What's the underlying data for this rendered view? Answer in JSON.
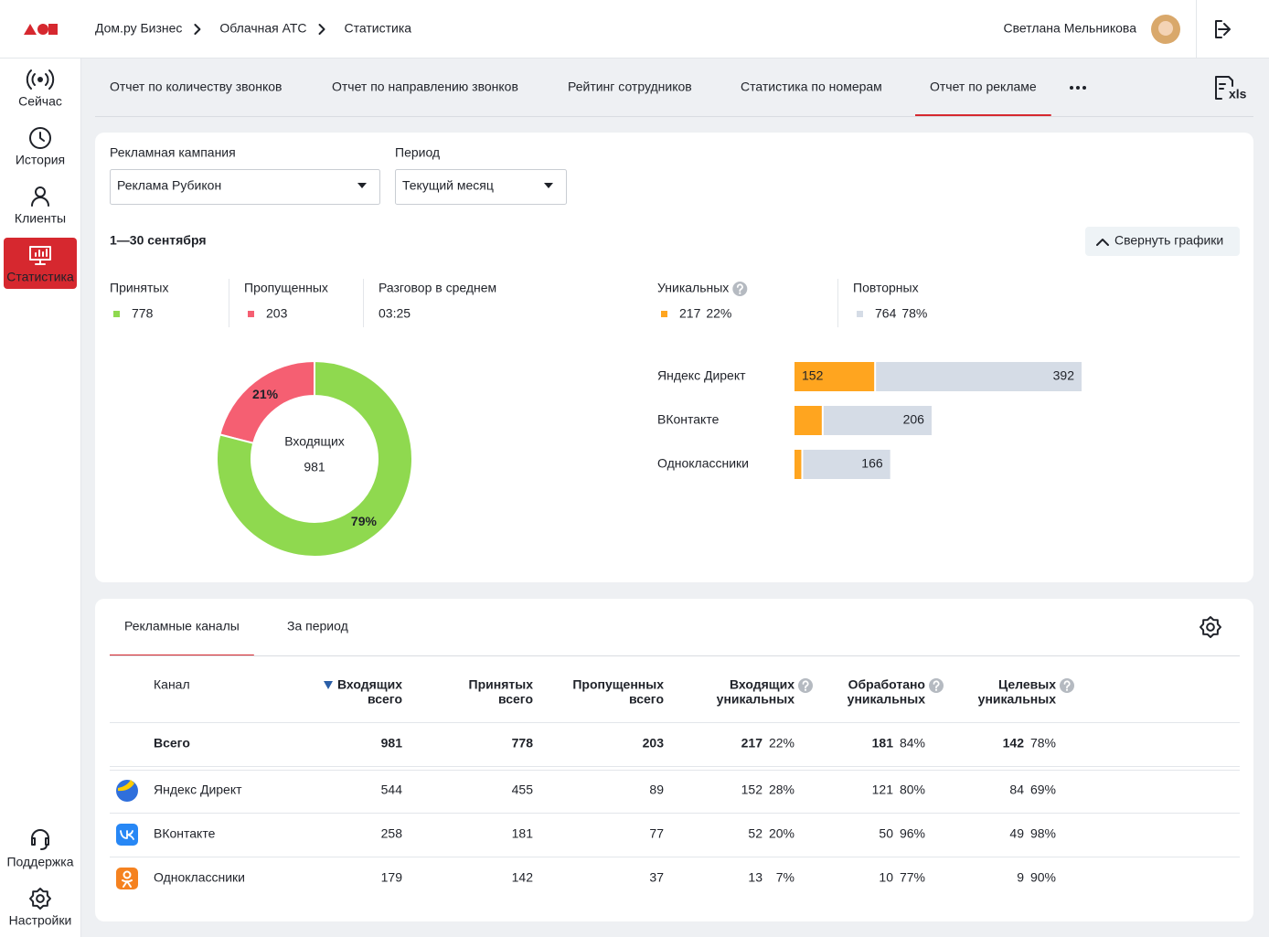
{
  "header": {
    "breadcrumbs": [
      "Дом.ру Бизнес",
      "Облачная АТС",
      "Статистика"
    ],
    "user": "Светлана Мельникова"
  },
  "sidebar": {
    "items": [
      "Сейчас",
      "История",
      "Клиенты",
      "Статистика"
    ],
    "active": 3,
    "bottom": [
      "Поддержка",
      "Настройки"
    ]
  },
  "tabs": {
    "items": [
      "Отчет по количеству звонков",
      "Отчет по направлению звонков",
      "Рейтинг сотрудников",
      "Статистика по номерам",
      "Отчет по рекламе"
    ],
    "active": 4,
    "export_label": "xls"
  },
  "filters": [
    {
      "label": "Рекламная кампания",
      "value": "Реклама Рубикон"
    },
    {
      "label": "Период",
      "value": "Текущий месяц"
    }
  ],
  "period_title": "1—30 сентября",
  "collapse_button": "Свернуть графики",
  "stats": [
    {
      "label": "Принятых",
      "value": 778,
      "color": "#8fd94f"
    },
    {
      "label": "Пропущенных",
      "value": 203,
      "color": "#f55f72"
    },
    {
      "label": "Разговор в среднем",
      "value": "03:25"
    }
  ],
  "unique_stats": [
    {
      "label": "Уникальных",
      "value": 217,
      "percent": "22%",
      "color": "#ffa51f",
      "help": true
    },
    {
      "label": "Повторных",
      "value": 764,
      "percent": "78%",
      "color": "#d5dce6",
      "help": false
    }
  ],
  "chart_data": [
    {
      "type": "pie",
      "center_label": "Входящих",
      "center_value": 981,
      "values": [
        21,
        79
      ],
      "value_labels": [
        "21%",
        "79%"
      ],
      "colors": [
        "#f55f72",
        "#8fd94f"
      ]
    },
    {
      "type": "bar",
      "orientation": "horizontal",
      "stacked": true,
      "categories": [
        "Яндекс Директ",
        "ВКонтакте",
        "Одноклассники"
      ],
      "series": [
        {
          "color": "#ffa51f",
          "values": [
            152,
            52,
            13
          ]
        },
        {
          "color": "#d5dce6",
          "values": [
            392,
            206,
            166
          ]
        }
      ]
    }
  ],
  "table": {
    "tabs": [
      "Рекламные каналы",
      "За период"
    ],
    "active_tab": 0,
    "sort_column": 1,
    "columns": [
      {
        "lines": [
          "Канал"
        ],
        "help": false
      },
      {
        "lines": [
          "Входящих",
          "всего"
        ],
        "help": false
      },
      {
        "lines": [
          "Принятых",
          "всего"
        ],
        "help": false
      },
      {
        "lines": [
          "Пропущенных",
          "всего"
        ],
        "help": false
      },
      {
        "lines": [
          "Входящих",
          "уникальных"
        ],
        "help": true
      },
      {
        "lines": [
          "Обработано",
          "уникальных"
        ],
        "help": true
      },
      {
        "lines": [
          "Целевых",
          "уникальных"
        ],
        "help": true
      }
    ],
    "total": [
      "Всего",
      981,
      778,
      203,
      217,
      "22%",
      181,
      "84%",
      142,
      "78%"
    ],
    "rows": [
      [
        "Яндекс Директ",
        544,
        455,
        89,
        152,
        "28%",
        121,
        "80%",
        84,
        "69%"
      ],
      [
        "ВКонтакте",
        258,
        181,
        77,
        52,
        "20%",
        50,
        "96%",
        49,
        "98%"
      ],
      [
        "Одноклассники",
        179,
        142,
        37,
        13,
        "7%",
        10,
        "77%",
        9,
        "90%"
      ]
    ]
  }
}
